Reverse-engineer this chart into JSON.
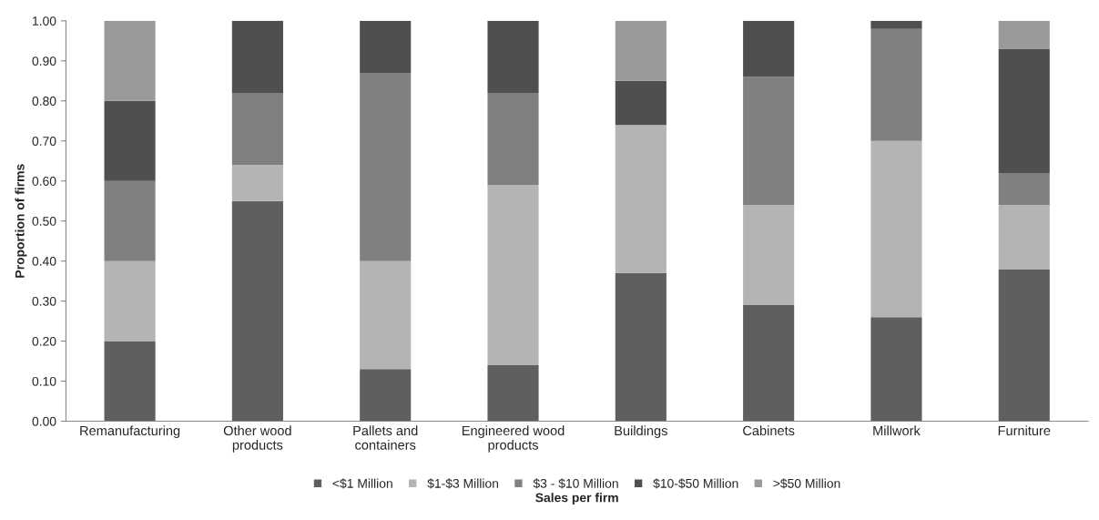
{
  "chart_data": {
    "type": "bar",
    "stacked": true,
    "xlabel": "Sales per firm",
    "ylabel": "Proportion of firms",
    "categories": [
      "Remanufacturing",
      "Other wood products",
      "Pallets and containers",
      "Engineered wood products",
      "Buildings",
      "Cabinets",
      "Millwork",
      "Furniture"
    ],
    "series": [
      {
        "name": "<$1 Million",
        "color": "#5f5f5f",
        "values": [
          0.2,
          0.55,
          0.13,
          0.14,
          0.37,
          0.29,
          0.26,
          0.38
        ]
      },
      {
        "name": "$1-$3 Million",
        "color": "#b4b4b4",
        "values": [
          0.2,
          0.09,
          0.27,
          0.45,
          0.37,
          0.25,
          0.44,
          0.16
        ]
      },
      {
        "name": "$3 - $10 Million",
        "color": "#808080",
        "values": [
          0.2,
          0.18,
          0.47,
          0.23,
          0,
          0.32,
          0.28,
          0.08
        ]
      },
      {
        "name": "$10-$50 Million",
        "color": "#4f4f4f",
        "values": [
          0.2,
          0.18,
          0.13,
          0.18,
          0.11,
          0.14,
          0.02,
          0.31
        ]
      },
      {
        "name": ">$50 Million",
        "color": "#9a9a9a",
        "values": [
          0.2,
          0,
          0,
          0,
          0.15,
          0,
          0,
          0.07
        ]
      }
    ],
    "ylim": [
      0,
      1
    ],
    "yticks": [
      {
        "value": 0,
        "label": "0.00"
      },
      {
        "value": 0.1,
        "label": "0.10"
      },
      {
        "value": 0.2,
        "label": "0.20"
      },
      {
        "value": 0.3,
        "label": "0.30"
      },
      {
        "value": 0.4,
        "label": "0.40"
      },
      {
        "value": 0.5,
        "label": "0.50"
      },
      {
        "value": 0.6,
        "label": "0.60"
      },
      {
        "value": 0.7,
        "label": "0.70"
      },
      {
        "value": 0.8,
        "label": "0.80"
      },
      {
        "value": 0.9,
        "label": "0.90"
      },
      {
        "value": 1,
        "label": "1.00"
      }
    ],
    "grid": false,
    "legend": "bottom"
  }
}
